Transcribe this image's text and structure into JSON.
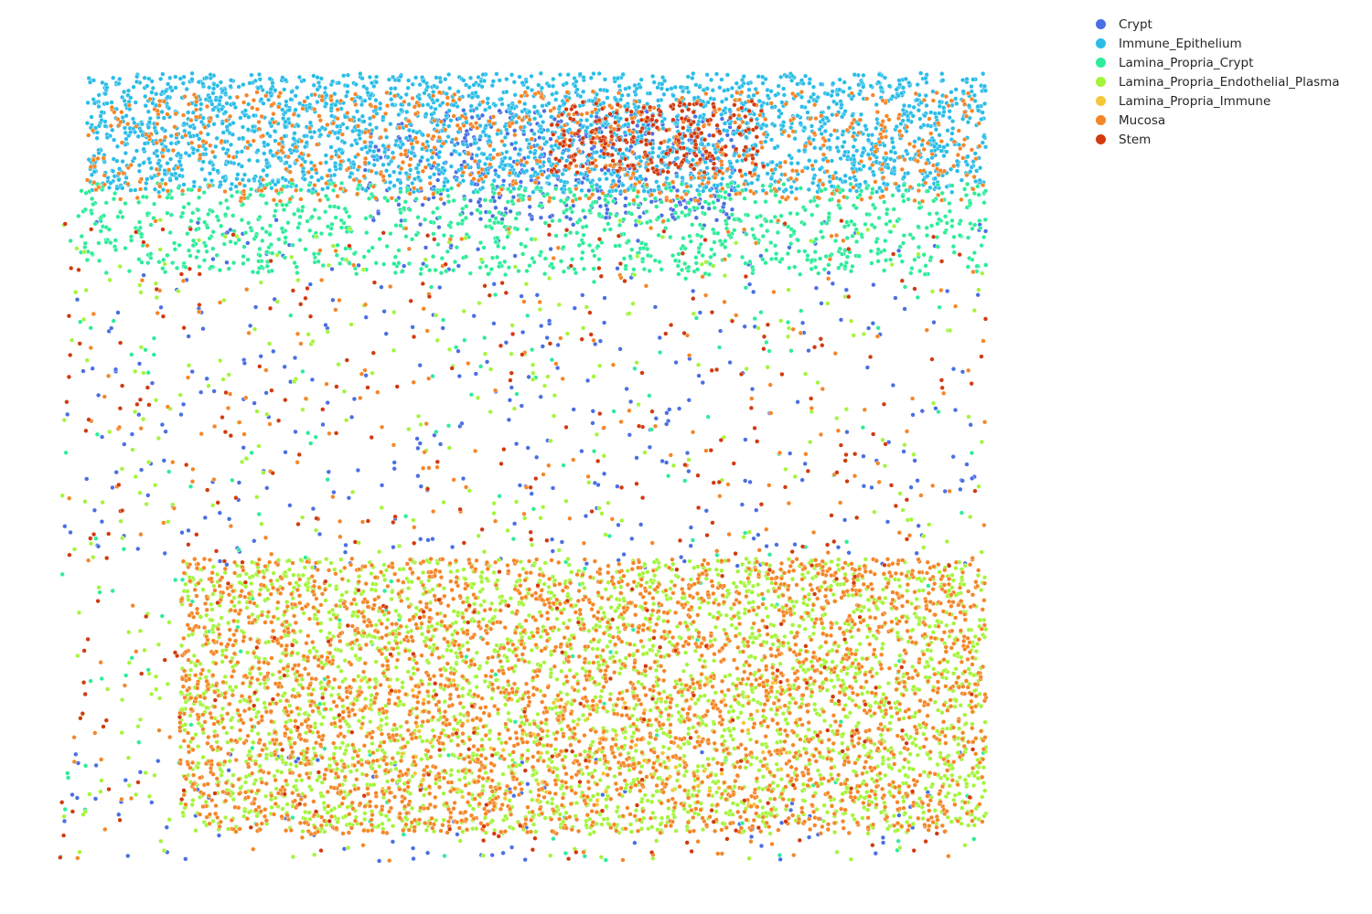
{
  "chart_data": {
    "type": "scatter",
    "title": "",
    "xlabel": "",
    "ylabel": "",
    "axes_visible": false,
    "grid": false,
    "legend_position": "top-right, outside plot area",
    "xlim": [
      0,
      1000
    ],
    "ylim": [
      0,
      880
    ],
    "series": [
      {
        "name": "Crypt",
        "color": "#4a6fe3",
        "approx_count": 900,
        "regions": [
          {
            "x": [
              330,
              730
            ],
            "y": [
              700,
              820
            ],
            "weight": 5
          },
          {
            "x": [
              0,
              1000
            ],
            "y": [
              320,
              700
            ],
            "weight": 4
          },
          {
            "x": [
              0,
              1000
            ],
            "y": [
              0,
              120
            ],
            "weight": 1
          }
        ]
      },
      {
        "name": "Immune_Epithelium",
        "color": "#2bbde8",
        "approx_count": 2600,
        "regions": [
          {
            "x": [
              30,
              1000
            ],
            "y": [
              730,
              860
            ],
            "weight": 1
          }
        ]
      },
      {
        "name": "Lamina_Propria_Crypt",
        "color": "#2eec9b",
        "approx_count": 1200,
        "regions": [
          {
            "x": [
              20,
              1000
            ],
            "y": [
              640,
              740
            ],
            "weight": 5
          },
          {
            "x": [
              0,
              1000
            ],
            "y": [
              0,
              700
            ],
            "weight": 1
          }
        ]
      },
      {
        "name": "Lamina_Propria_Endothelial_Plasma",
        "color": "#a4f53a",
        "approx_count": 3400,
        "regions": [
          {
            "x": [
              130,
              1000
            ],
            "y": [
              30,
              330
            ],
            "weight": 6
          },
          {
            "x": [
              0,
              1000
            ],
            "y": [
              0,
              700
            ],
            "weight": 1
          }
        ]
      },
      {
        "name": "Lamina_Propria_Immune",
        "color": "#f5c637",
        "approx_count": 120,
        "regions": [
          {
            "x": [
              300,
              800
            ],
            "y": [
              60,
              200
            ],
            "weight": 1
          }
        ]
      },
      {
        "name": "Mucosa",
        "color": "#f58628",
        "approx_count": 4000,
        "regions": [
          {
            "x": [
              130,
              1000
            ],
            "y": [
              30,
              330
            ],
            "weight": 8
          },
          {
            "x": [
              30,
              1000
            ],
            "y": [
              720,
              840
            ],
            "weight": 2
          },
          {
            "x": [
              0,
              1000
            ],
            "y": [
              0,
              700
            ],
            "weight": 1
          }
        ]
      },
      {
        "name": "Stem",
        "color": "#d23a0e",
        "approx_count": 650,
        "regions": [
          {
            "x": [
              0,
              1000
            ],
            "y": [
              0,
              700
            ],
            "weight": 3
          },
          {
            "x": [
              530,
              760
            ],
            "y": [
              750,
              830
            ],
            "weight": 2
          }
        ]
      }
    ]
  }
}
